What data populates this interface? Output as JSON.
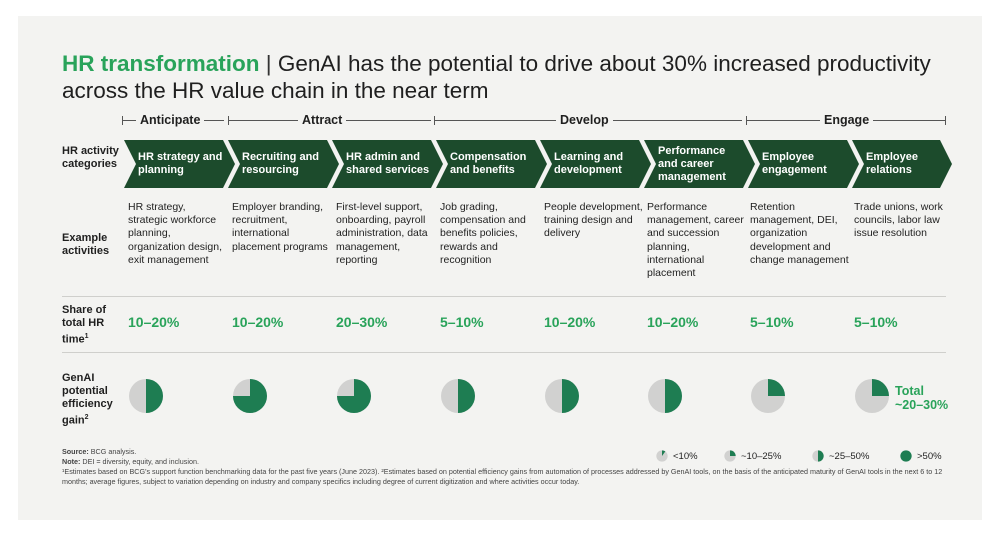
{
  "title": {
    "highlight": "HR transformation",
    "separator": "|",
    "text": "GenAI has the potential to drive about 30% increased productivity across the HR value chain in the near term"
  },
  "phases": [
    "Anticipate",
    "Attract",
    "Develop",
    "Engage"
  ],
  "row_labels": {
    "categories": "HR activity categories",
    "activities": "Example activities",
    "share": "Share of total HR time",
    "share_sup": "1",
    "gain": "GenAI potential efficiency gain",
    "gain_sup": "2"
  },
  "columns": [
    {
      "category": "HR strategy and planning",
      "activities": "HR strategy, strategic workforce planning, organization design, exit management",
      "share": "10–20%",
      "gain": "~25–50%"
    },
    {
      "category": "Recruiting and resourcing",
      "activities": "Employer branding, recruitment, international placement programs",
      "share": "10–20%",
      "gain": ">50%"
    },
    {
      "category": "HR admin and shared services",
      "activities": "First-level support, onboarding, payroll administration, data management, reporting",
      "share": "20–30%",
      "gain": ">50%"
    },
    {
      "category": "Compensation and benefits",
      "activities": "Job grading, compensation and benefits policies, rewards and recognition",
      "share": "5–10%",
      "gain": "~25–50%"
    },
    {
      "category": "Learning and development",
      "activities": "People development, training design and delivery",
      "share": "10–20%",
      "gain": "~25–50%"
    },
    {
      "category": "Performance and career management",
      "activities": "Performance management, career and succession planning, international placement",
      "share": "10–20%",
      "gain": "~25–50%"
    },
    {
      "category": "Employee engagement",
      "activities": "Retention management, DEI, organization development and change management",
      "share": "5–10%",
      "gain": "~10–25%"
    },
    {
      "category": "Employee relations",
      "activities": "Trade unions, work councils, labor law issue resolution",
      "share": "5–10%",
      "gain": "~10–25%"
    }
  ],
  "total": {
    "line1": "Total",
    "line2": "~20–30%"
  },
  "legend": [
    "<10%",
    "~10–25%",
    "~25–50%",
    ">50%"
  ],
  "footnotes": {
    "source_label": "Source:",
    "source": "BCG analysis.",
    "note_label": "Note:",
    "note": "DEI = diversity, equity, and inclusion.",
    "fn": "¹Estimates based on BCG's support function benchmarking data for the past five years (June 2023). ²Estimates based on potential efficiency gains from automation of processes addressed by GenAI tools, on the basis of the anticipated maturity of GenAI tools in the next 6 to 12 months; average figures, subject to variation depending on industry and company specifics including degree of current digitization and where activities occur today."
  },
  "colors": {
    "dark_green": "#1c4b2c",
    "accent_green": "#29a35a",
    "pie_green": "#1e7d52",
    "pie_grey": "#d1d1d0",
    "panel": "#f3f3f1"
  }
}
